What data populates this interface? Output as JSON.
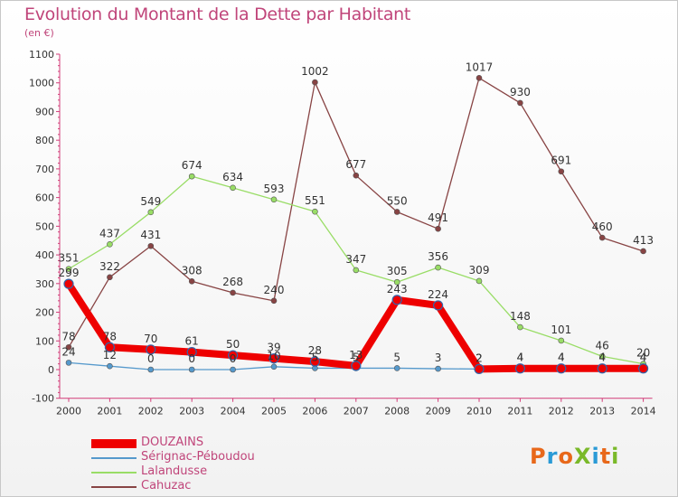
{
  "header": {
    "title": "Evolution du Montant de la Dette par Habitant",
    "unit": "(en €)"
  },
  "logo": {
    "text": "ProXiti",
    "colors": [
      "#e8681a",
      "#2a9ad6",
      "#e8681a",
      "#7ab929",
      "#2a9ad6",
      "#e8681a",
      "#7ab929"
    ]
  },
  "chart_data": {
    "type": "line",
    "title": "Evolution du Montant de la Dette par Habitant",
    "subtitle": "(en €)",
    "xlabel": "",
    "ylabel": "",
    "x": [
      "2000",
      "2001",
      "2002",
      "2003",
      "2004",
      "2005",
      "2006",
      "2007",
      "2008",
      "2009",
      "2010",
      "2011",
      "2012",
      "2013",
      "2014"
    ],
    "ylim": [
      -100,
      1100
    ],
    "yticks": [
      "-100",
      "0",
      "100",
      "200",
      "300",
      "400",
      "500",
      "600",
      "700",
      "800",
      "900",
      "1000",
      "1100"
    ],
    "grid": false,
    "legend_position": "bottom",
    "series": [
      {
        "name": "DOUZAINS",
        "color": "#ee0000",
        "values": [
          299,
          78,
          70,
          61,
          50,
          39,
          28,
          13,
          243,
          224,
          2,
          4,
          4,
          4,
          4
        ],
        "labels": [
          "299",
          "78",
          "70",
          "61",
          "50",
          "39",
          "28",
          "13",
          "243",
          "224",
          "2",
          "4",
          "4",
          "4",
          "4"
        ]
      },
      {
        "name": "Sérignac-Péboudou",
        "color": "#5599cc",
        "values": [
          24,
          12,
          0,
          0,
          0,
          10,
          5,
          5,
          5,
          3,
          2,
          4,
          4,
          4,
          4
        ],
        "labels": [
          "24",
          "12",
          "0",
          "0",
          "0",
          "10",
          "5",
          "5",
          "5",
          "3",
          "2",
          "4",
          "4",
          "4",
          "4"
        ]
      },
      {
        "name": "Lalandusse",
        "color": "#99dd66",
        "values": [
          351,
          437,
          549,
          674,
          634,
          593,
          551,
          347,
          305,
          356,
          309,
          148,
          101,
          46,
          20
        ],
        "labels": [
          "351",
          "437",
          "549",
          "674",
          "634",
          "593",
          "551",
          "347",
          "305",
          "356",
          "309",
          "148",
          "101",
          "46",
          "20"
        ]
      },
      {
        "name": "Cahuzac",
        "color": "#884444",
        "values": [
          78,
          322,
          431,
          308,
          268,
          240,
          1002,
          677,
          550,
          491,
          1017,
          930,
          691,
          460,
          413
        ],
        "labels": [
          "78",
          "322",
          "431",
          "308",
          "268",
          "240",
          "1002",
          "677",
          "550",
          "491",
          "1017",
          "930",
          "691",
          "460",
          "413"
        ]
      }
    ]
  }
}
